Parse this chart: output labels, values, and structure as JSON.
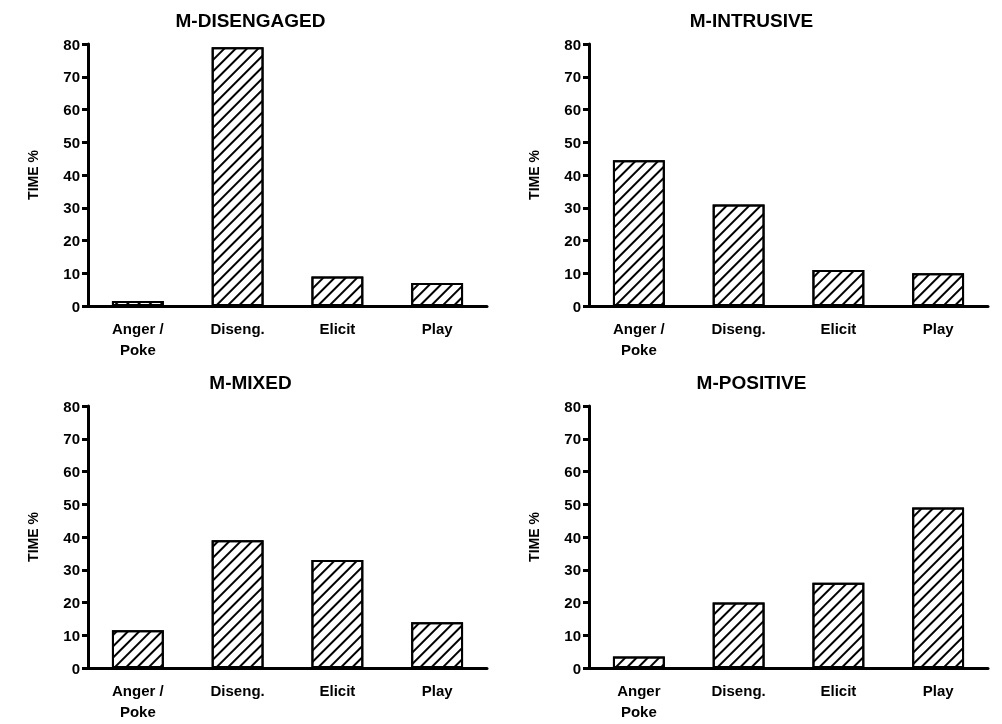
{
  "chart_data": [
    {
      "type": "bar",
      "title": "M-DISENGAGED",
      "ylabel": "TIME %",
      "categories": [
        "Anger /\nPoke",
        "Diseng.",
        "Elicit",
        "Play"
      ],
      "values": [
        1.5,
        79,
        9,
        7
      ],
      "color": "#ffffff",
      "ylim": [
        0,
        80
      ],
      "yticks": [
        0,
        10,
        20,
        30,
        40,
        50,
        60,
        70,
        80
      ]
    },
    {
      "type": "bar",
      "title": "M-INTRUSIVE",
      "ylabel": "TIME %",
      "categories": [
        "Anger /\nPoke",
        "Diseng.",
        "Elicit",
        "Play"
      ],
      "values": [
        44.5,
        31,
        11,
        10
      ],
      "color": "#ffffff",
      "ylim": [
        0,
        80
      ],
      "yticks": [
        0,
        10,
        20,
        30,
        40,
        50,
        60,
        70,
        80
      ]
    },
    {
      "type": "bar",
      "title": "M-MIXED",
      "ylabel": "TIME %",
      "categories": [
        "Anger /\nPoke",
        "Diseng.",
        "Elicit",
        "Play"
      ],
      "values": [
        11.5,
        39,
        33,
        14
      ],
      "color": "#ffffff",
      "ylim": [
        0,
        80
      ],
      "yticks": [
        0,
        10,
        20,
        30,
        40,
        50,
        60,
        70,
        80
      ]
    },
    {
      "type": "bar",
      "title": "M-POSITIVE",
      "ylabel": "TIME %",
      "categories": [
        "Anger\nPoke",
        "Diseng.",
        "Elicit",
        "Play"
      ],
      "values": [
        3.5,
        20,
        26,
        49
      ],
      "color": "#ffffff",
      "ylim": [
        0,
        80
      ],
      "yticks": [
        0,
        10,
        20,
        30,
        40,
        50,
        60,
        70,
        80
      ]
    }
  ]
}
